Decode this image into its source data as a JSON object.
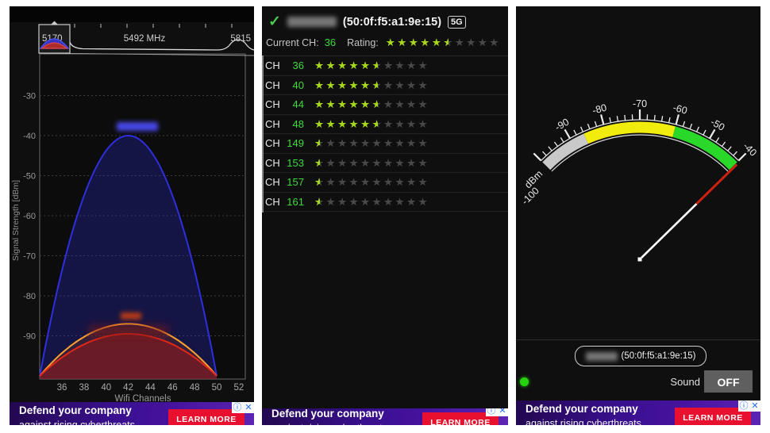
{
  "ad": {
    "line1": "Defend your company",
    "line2": "against rising cyberthreats",
    "cta": "LEARN MORE",
    "info_icon": "ⓘ",
    "close_icon": "✕",
    "cta_color": "#e8102e"
  },
  "spectrum": {
    "overview": {
      "freq_left": "5170",
      "freq_center": "5492 MHz",
      "freq_right": "5815"
    },
    "y_axis_title": "Signal Strength [dBm]",
    "x_axis_title": "Wifi Channels",
    "chart_data": {
      "type": "area",
      "x_ticks": [
        36,
        38,
        40,
        42,
        44,
        46,
        48,
        50,
        52
      ],
      "y_ticks": [
        -30,
        -40,
        -50,
        -60,
        -70,
        -80,
        -90
      ],
      "xlim": [
        33.5,
        53.3
      ],
      "ylim": [
        -100,
        -20
      ],
      "series": [
        {
          "name": "network-blue",
          "color": "#2e2edd",
          "fill": "rgba(40,40,190,0.32)",
          "center_channel": 42,
          "edge_channels": [
            34,
            50
          ],
          "peak_dbm": -40,
          "label_blurred": true
        },
        {
          "name": "network-orange",
          "color": "#ffa030",
          "fill": "rgba(160,70,20,0.22)",
          "center_channel": 42,
          "edge_channels": [
            34,
            50
          ],
          "peak_dbm": -87,
          "label_blurred": true
        },
        {
          "name": "network-red",
          "color": "#e22818",
          "fill": "rgba(150,25,25,0.55)",
          "center_channel": 42,
          "edge_channels": [
            34,
            50
          ],
          "peak_dbm": -89.5,
          "label_blurred": false
        }
      ]
    }
  },
  "rating": {
    "check_icon": "✓",
    "network_name_blurred": true,
    "bssid": "(50:0f:f5:a1:9e:15)",
    "band_badge": "5G",
    "current_ch_label": "Current CH:",
    "current_ch": "36",
    "rating_label": "Rating:",
    "rating_value": 5.5,
    "rating_max": 10,
    "channel_prefix": "CH",
    "channels": [
      {
        "ch": "36",
        "rating": 5.5
      },
      {
        "ch": "40",
        "rating": 5.5
      },
      {
        "ch": "44",
        "rating": 5.5
      },
      {
        "ch": "48",
        "rating": 5.5
      },
      {
        "ch": "149",
        "rating": 0.5
      },
      {
        "ch": "153",
        "rating": 0.5
      },
      {
        "ch": "157",
        "rating": 0.5
      },
      {
        "ch": "161",
        "rating": 0.5
      }
    ]
  },
  "meter": {
    "gauge": {
      "unit": "dBm",
      "min": -100,
      "max": -40,
      "minor_step": 2,
      "major_ticks": [
        -100,
        -90,
        -80,
        -70,
        -60,
        -50,
        -40
      ],
      "bands": [
        {
          "from": -100,
          "to": -86,
          "color": "#c9c9c9"
        },
        {
          "from": -86,
          "to": -60,
          "color": "#f2ec0c"
        },
        {
          "from": -60,
          "to": -40,
          "color": "#2ad82a"
        }
      ],
      "value_dbm": -40
    },
    "network_name_blurred": true,
    "selected_network_bssid": "(50:0f:f5:a1:9e:15)",
    "sound_label": "Sound",
    "sound_state": "OFF",
    "status_dot_color": "#27d30e"
  }
}
